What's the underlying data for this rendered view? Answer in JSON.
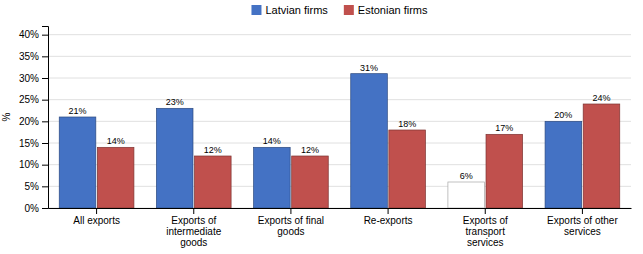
{
  "chart_data": {
    "type": "bar",
    "categories": [
      "All exports",
      "Exports of\nintermediate\ngoods",
      "Exports of final\ngoods",
      "Re-exports",
      "Exports of\ntransport\nservices",
      "Exports of other\nservices"
    ],
    "series": [
      {
        "name": "Latvian firms",
        "color": "#4472C4",
        "colors": [
          "#4472C4",
          "#4472C4",
          "#4472C4",
          "#4472C4",
          "#ffffff",
          "#4472C4"
        ],
        "values": [
          21,
          23,
          14,
          31,
          6,
          20
        ],
        "value_labels": [
          "21%",
          "23%",
          "14%",
          "31%",
          "6%",
          "20%"
        ]
      },
      {
        "name": "Estonian firms",
        "color": "#C0504D",
        "values": [
          14,
          12,
          12,
          18,
          17,
          24
        ],
        "value_labels": [
          "14%",
          "12%",
          "12%",
          "18%",
          "17%",
          "24%"
        ]
      }
    ],
    "ylabel": "%",
    "ylim": [
      0,
      42
    ],
    "yticks": [
      {
        "value": 0,
        "label": "0%"
      },
      {
        "value": 5,
        "label": "5%"
      },
      {
        "value": 10,
        "label": "10%"
      },
      {
        "value": 15,
        "label": "15%"
      },
      {
        "value": 20,
        "label": "20%"
      },
      {
        "value": 25,
        "label": "25%"
      },
      {
        "value": 30,
        "label": "30%"
      },
      {
        "value": 35,
        "label": "35%"
      },
      {
        "value": 40,
        "label": "40%"
      }
    ],
    "grid": true,
    "legend": "top",
    "data_labels": true
  }
}
